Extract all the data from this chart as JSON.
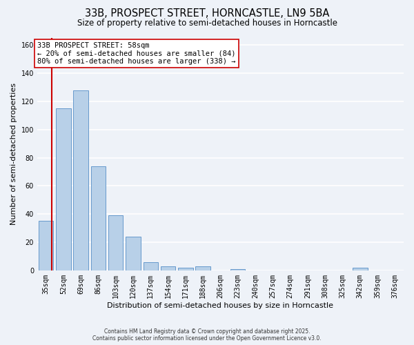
{
  "title": "33B, PROSPECT STREET, HORNCASTLE, LN9 5BA",
  "subtitle": "Size of property relative to semi-detached houses in Horncastle",
  "bar_values": [
    35,
    115,
    128,
    74,
    39,
    24,
    6,
    3,
    2,
    3,
    0,
    1,
    0,
    0,
    0,
    0,
    0,
    0,
    2,
    0,
    0
  ],
  "x_labels": [
    "35sqm",
    "52sqm",
    "69sqm",
    "86sqm",
    "103sqm",
    "120sqm",
    "137sqm",
    "154sqm",
    "171sqm",
    "188sqm",
    "206sqm",
    "223sqm",
    "240sqm",
    "257sqm",
    "274sqm",
    "291sqm",
    "308sqm",
    "325sqm",
    "342sqm",
    "359sqm",
    "376sqm"
  ],
  "bar_color": "#b8d0e8",
  "bar_edge_color": "#6699cc",
  "property_line_x": 0.35,
  "property_line_color": "#cc0000",
  "ylabel": "Number of semi-detached properties",
  "xlabel": "Distribution of semi-detached houses by size in Horncastle",
  "ylim": [
    0,
    165
  ],
  "yticks": [
    0,
    20,
    40,
    60,
    80,
    100,
    120,
    140,
    160
  ],
  "annotation_title": "33B PROSPECT STREET: 58sqm",
  "annotation_line1": "← 20% of semi-detached houses are smaller (84)",
  "annotation_line2": "80% of semi-detached houses are larger (338) →",
  "footnote1": "Contains HM Land Registry data © Crown copyright and database right 2025.",
  "footnote2": "Contains public sector information licensed under the Open Government Licence v3.0.",
  "bg_color": "#eef2f8",
  "grid_color": "#ffffff",
  "title_fontsize": 10.5,
  "subtitle_fontsize": 8.5,
  "label_fontsize": 8,
  "tick_fontsize": 7,
  "annotation_fontsize": 7.5
}
